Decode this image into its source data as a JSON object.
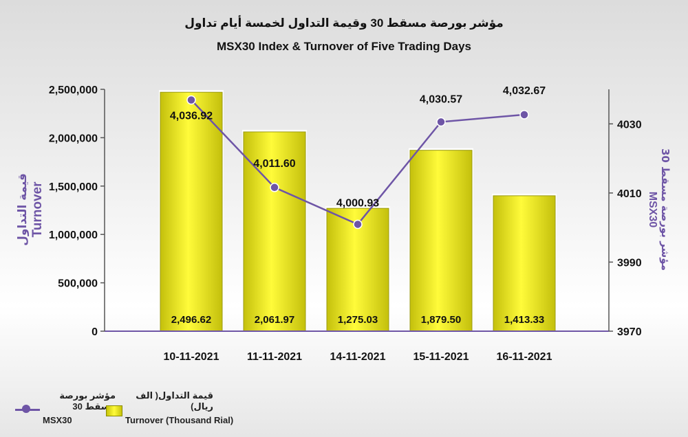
{
  "title_ar": "مؤشر بورصة مسقط 30 وقيمة التداول لخمسة أيام تداول",
  "title_en": "MSX30 Index & Turnover of Five Trading Days",
  "legend": {
    "index_ar": "مؤشر بورصة مسقط 30",
    "index_en": "MSX30",
    "turnover_ar": "قيمة التداول( الف ريال)",
    "turnover_en": "Turnover (Thousand Rial)"
  },
  "colors": {
    "line": "#6e55a6",
    "bar_edge": "#9a9a12",
    "bar_light": "#fffb3a",
    "bar_dark": "#c4c00c",
    "axis_label": "#6e55a6"
  },
  "chart_data": {
    "type": "bar+line",
    "categories": [
      "10-11-2021",
      "11-11-2021",
      "14-11-2021",
      "15-11-2021",
      "16-11-2021"
    ],
    "bar_series": {
      "name": "Turnover (Thousand Rial)",
      "values": [
        2496.62,
        2061.97,
        1275.03,
        1879.5,
        1413.33
      ],
      "labels": [
        "2,496.62",
        "2,061.97",
        "1,275.03",
        "1,879.50",
        "1,413.33"
      ]
    },
    "line_series": {
      "name": "MSX30",
      "values": [
        4036.92,
        4011.6,
        4000.93,
        4030.57,
        4032.67
      ],
      "labels": [
        "4,036.92",
        "4,011.60",
        "4,000.93",
        "4,030.57",
        "4,032.67"
      ]
    },
    "left_axis": {
      "label_ar": "قيمة التداول",
      "label_en": "Turnover",
      "ticks": [
        0,
        500000,
        1000000,
        1500000,
        2000000,
        2500000
      ],
      "tick_labels": [
        "0",
        "500,000",
        "1,000,000",
        "1,500,000",
        "2,000,000",
        "2,500,000"
      ]
    },
    "right_axis": {
      "label_ar": "مؤشر بورصة مسقط 30",
      "label_en": "MSX30",
      "ticks": [
        3970,
        3990,
        4010,
        4030
      ],
      "tick_labels": [
        "3970",
        "3990",
        "4010",
        "4030"
      ]
    },
    "bar_heights_left_axis_units": [
      2470000,
      2060000,
      1270000,
      1870000,
      1400000
    ],
    "grid": false,
    "legend_position": "bottom-left"
  }
}
